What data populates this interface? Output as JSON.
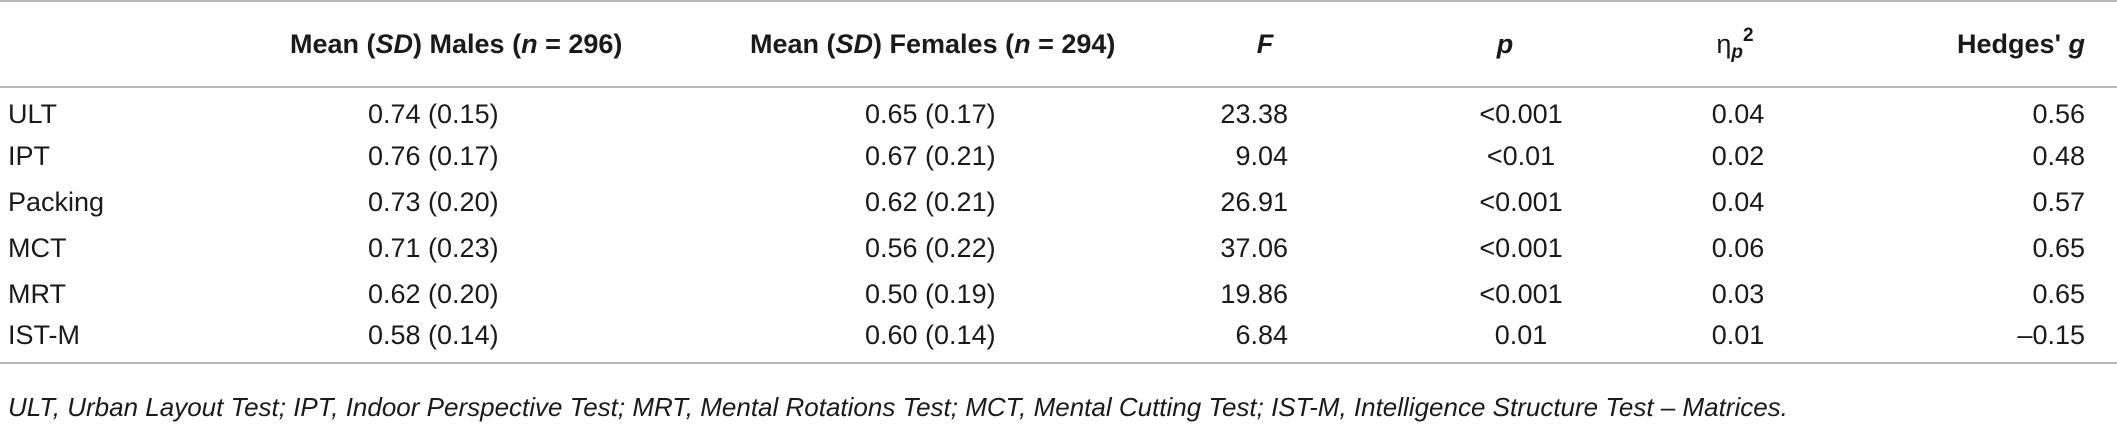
{
  "table": {
    "headers": {
      "stub": "",
      "males": {
        "pre": "Mean (",
        "sd": "SD",
        "mid": ") Males (",
        "n": "n",
        "post": " = 296)"
      },
      "females": {
        "pre": "Mean (",
        "sd": "SD",
        "mid": ") Females (",
        "n": "n",
        "post": " = 294)"
      },
      "f": "F",
      "p": "p",
      "eta": {
        "symbol": "η",
        "sub": "p",
        "sup": "2"
      },
      "hedges": {
        "pre": "Hedges' ",
        "g": "g"
      }
    },
    "rows": [
      {
        "label": "ULT",
        "males": "0.74 (0.15)",
        "females": "0.65 (0.17)",
        "f": "23.38",
        "p": "<0.001",
        "eta": "0.04",
        "g": "0.56"
      },
      {
        "label": "IPT",
        "males": "0.76 (0.17)",
        "females": "0.67 (0.21)",
        "f": "9.04",
        "p": "<0.01",
        "eta": "0.02",
        "g": "0.48"
      },
      {
        "label": "Packing",
        "males": "0.73 (0.20)",
        "females": "0.62 (0.21)",
        "f": "26.91",
        "p": "<0.001",
        "eta": "0.04",
        "g": "0.57"
      },
      {
        "label": "MCT",
        "males": "0.71 (0.23)",
        "females": "0.56 (0.22)",
        "f": "37.06",
        "p": "<0.001",
        "eta": "0.06",
        "g": "0.65"
      },
      {
        "label": "MRT",
        "males": "0.62 (0.20)",
        "females": "0.50 (0.19)",
        "f": "19.86",
        "p": "<0.001",
        "eta": "0.03",
        "g": "0.65"
      },
      {
        "label": "IST-M",
        "males": "0.58 (0.14)",
        "females": "0.60 (0.14)",
        "f": "6.84",
        "p": "0.01",
        "eta": "0.01",
        "g": "–0.15"
      }
    ]
  },
  "footnote": "ULT, Urban Layout Test; IPT, Indoor Perspective Test; MRT, Mental Rotations Test; MCT, Mental Cutting Test; IST-M, Intelligence Structure Test – Matrices."
}
